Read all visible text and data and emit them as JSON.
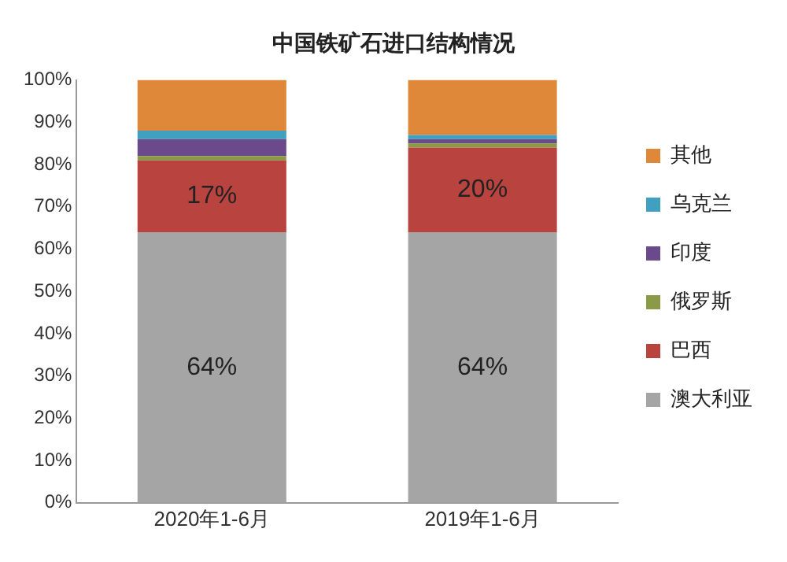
{
  "chart_data": {
    "type": "bar",
    "title": "中国铁矿石进口结构情况",
    "categories": [
      "2020年1-6月",
      "2019年1-6月"
    ],
    "stacked": true,
    "legend": "right",
    "grid": false,
    "ylim": [
      0,
      100
    ],
    "yticks": [
      {
        "value": 0,
        "label": "0%"
      },
      {
        "value": 10,
        "label": "10%"
      },
      {
        "value": 20,
        "label": "20%"
      },
      {
        "value": 30,
        "label": "30%"
      },
      {
        "value": 40,
        "label": "40%"
      },
      {
        "value": 50,
        "label": "50%"
      },
      {
        "value": 60,
        "label": "60%"
      },
      {
        "value": 70,
        "label": "70%"
      },
      {
        "value": 80,
        "label": "80%"
      },
      {
        "value": 90,
        "label": "90%"
      },
      {
        "value": 100,
        "label": "100%"
      }
    ],
    "series": [
      {
        "name": "澳大利亚",
        "color": "#a5a5a5",
        "values": [
          64,
          64
        ],
        "value_labels": [
          "64%",
          "64%"
        ]
      },
      {
        "name": "巴西",
        "color": "#b9433f",
        "values": [
          17,
          20
        ],
        "value_labels": [
          "17%",
          "20%"
        ]
      },
      {
        "name": "俄罗斯",
        "color": "#8a9a45",
        "values": [
          1,
          1
        ]
      },
      {
        "name": "印度",
        "color": "#6a4a8a",
        "values": [
          4,
          1
        ]
      },
      {
        "name": "乌克兰",
        "color": "#3fa0bf",
        "values": [
          2,
          1
        ]
      },
      {
        "name": "其他",
        "color": "#e0883a",
        "values": [
          12,
          13
        ]
      }
    ]
  }
}
